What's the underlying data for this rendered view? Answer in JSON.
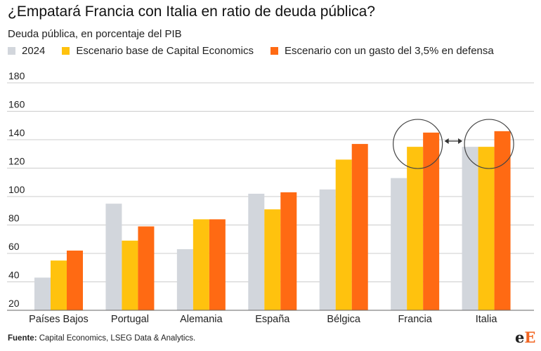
{
  "title": "¿Empatará Francia con Italia en ratio de deuda pública?",
  "subtitle": "Deuda pública, en porcentaje del PIB",
  "footer": {
    "source_label": "Fuente:",
    "source_text": " Capital Economics, LSEG Data & Analytics."
  },
  "logo": {
    "part1": "e",
    "part2": "E"
  },
  "colors": {
    "s2024": "#d2d6dc",
    "base": "#ffc20e",
    "defensa": "#ff6a13",
    "grid": "#cccccc",
    "circle": "#444444"
  },
  "chart_data": {
    "type": "bar",
    "title": "¿Empatará Francia con Italia en ratio de deuda pública?",
    "subtitle": "Deuda pública, en porcentaje del PIB",
    "xlabel": "",
    "ylabel": "",
    "ylim": [
      20,
      180
    ],
    "yticks": [
      20,
      40,
      60,
      80,
      100,
      120,
      140,
      160,
      180
    ],
    "grid": true,
    "legend_position": "top-left",
    "categories": [
      "Países Bajos",
      "Portugal",
      "Alemania",
      "España",
      "Bélgica",
      "Francia",
      "Italia"
    ],
    "series": [
      {
        "name": "2024",
        "color": "#d2d6dc",
        "values": [
          43,
          95,
          63,
          102,
          105,
          113,
          135
        ]
      },
      {
        "name": "Escenario base de Capital Economics",
        "color": "#ffc20e",
        "values": [
          55,
          69,
          84,
          91,
          126,
          135,
          135
        ]
      },
      {
        "name": "Escenario con un gasto del 3,5% en defensa",
        "color": "#ff6a13",
        "values": [
          62,
          79,
          84,
          103,
          137,
          145,
          146
        ]
      }
    ],
    "annotations": [
      {
        "type": "circle",
        "category": "Francia"
      },
      {
        "type": "circle",
        "category": "Italia"
      },
      {
        "type": "double-arrow",
        "from": "Francia",
        "to": "Italia"
      }
    ]
  }
}
